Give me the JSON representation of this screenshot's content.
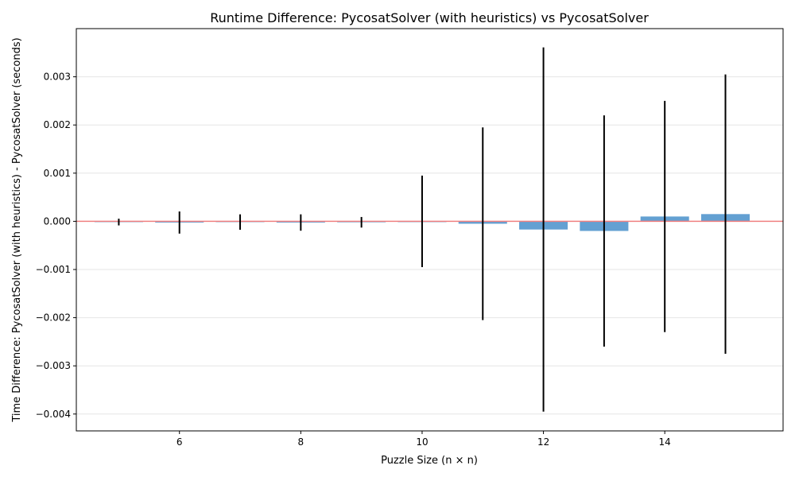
{
  "chart_data": {
    "type": "bar",
    "title": "Runtime Difference: PycosatSolver (with heuristics) vs PycosatSolver",
    "xlabel": "Puzzle Size (n × n)",
    "ylabel": "Time Difference: PycosatSolver (with heuristics) - PycosatSolver (seconds)",
    "x": [
      5,
      6,
      7,
      8,
      9,
      10,
      11,
      12,
      13,
      14,
      15
    ],
    "values": [
      -1.5e-05,
      -2.5e-05,
      -1.5e-05,
      -2.5e-05,
      -2e-05,
      0.0,
      -5e-05,
      -0.00017,
      -0.0002,
      0.0001,
      0.00015
    ],
    "error": [
      7e-05,
      0.00023,
      0.00016,
      0.00017,
      0.00011,
      0.00095,
      0.002,
      0.00378,
      0.0024,
      0.0024,
      0.0029
    ],
    "xlim": [
      4.3,
      15.95
    ],
    "ylim": [
      -0.00435,
      0.004
    ],
    "xticks": [
      6,
      8,
      10,
      12,
      14
    ],
    "xtick_labels": [
      "6",
      "8",
      "10",
      "12",
      "14"
    ],
    "yticks": [
      -0.004,
      -0.003,
      -0.002,
      -0.001,
      0.0,
      0.001,
      0.002,
      0.003
    ],
    "ytick_labels": [
      "−0.004",
      "−0.003",
      "−0.002",
      "−0.001",
      "0.000",
      "0.001",
      "0.002",
      "0.003"
    ],
    "bar_color": "#5b9bd0",
    "errorbar_color": "#000000",
    "zero_line_color": "#f08080",
    "grid": "horizontal",
    "legend": "none"
  }
}
